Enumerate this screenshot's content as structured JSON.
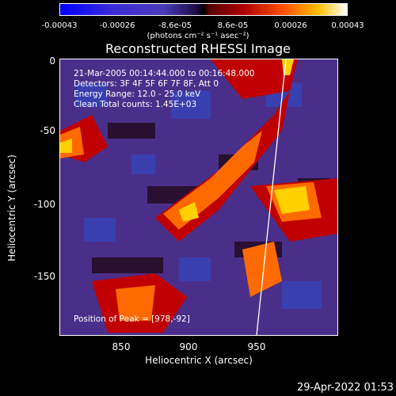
{
  "colorbar": {
    "ticks": [
      "-0.00043",
      "-0.00026",
      "-8.6e-05",
      "8.6e-05",
      "0.00026",
      "0.00043"
    ],
    "units": "(photons cm⁻² s⁻¹ asec⁻²)"
  },
  "title": "Reconstructed RHESSI Image",
  "info": {
    "line1": "21-Mar-2005 00:14:44.000 to 00:16:48.000",
    "line2": "Detectors: 3F 4F 5F 6F 7F 8F, Att 0",
    "line3": "Energy Range: 12.0 - 25.0 keV",
    "line4": "Clean    Total counts: 1.45E+03"
  },
  "peak": "Position of Peak = [978,-92]",
  "axes": {
    "xlabel": "Heliocentric X (arcsec)",
    "ylabel": "Heliocentric Y (arcsec)",
    "xticks": [
      "850",
      "900",
      "950"
    ],
    "yticks": [
      "0",
      "-50",
      "-100",
      "-150"
    ]
  },
  "timestamp": "29-Apr-2022 01:53"
}
